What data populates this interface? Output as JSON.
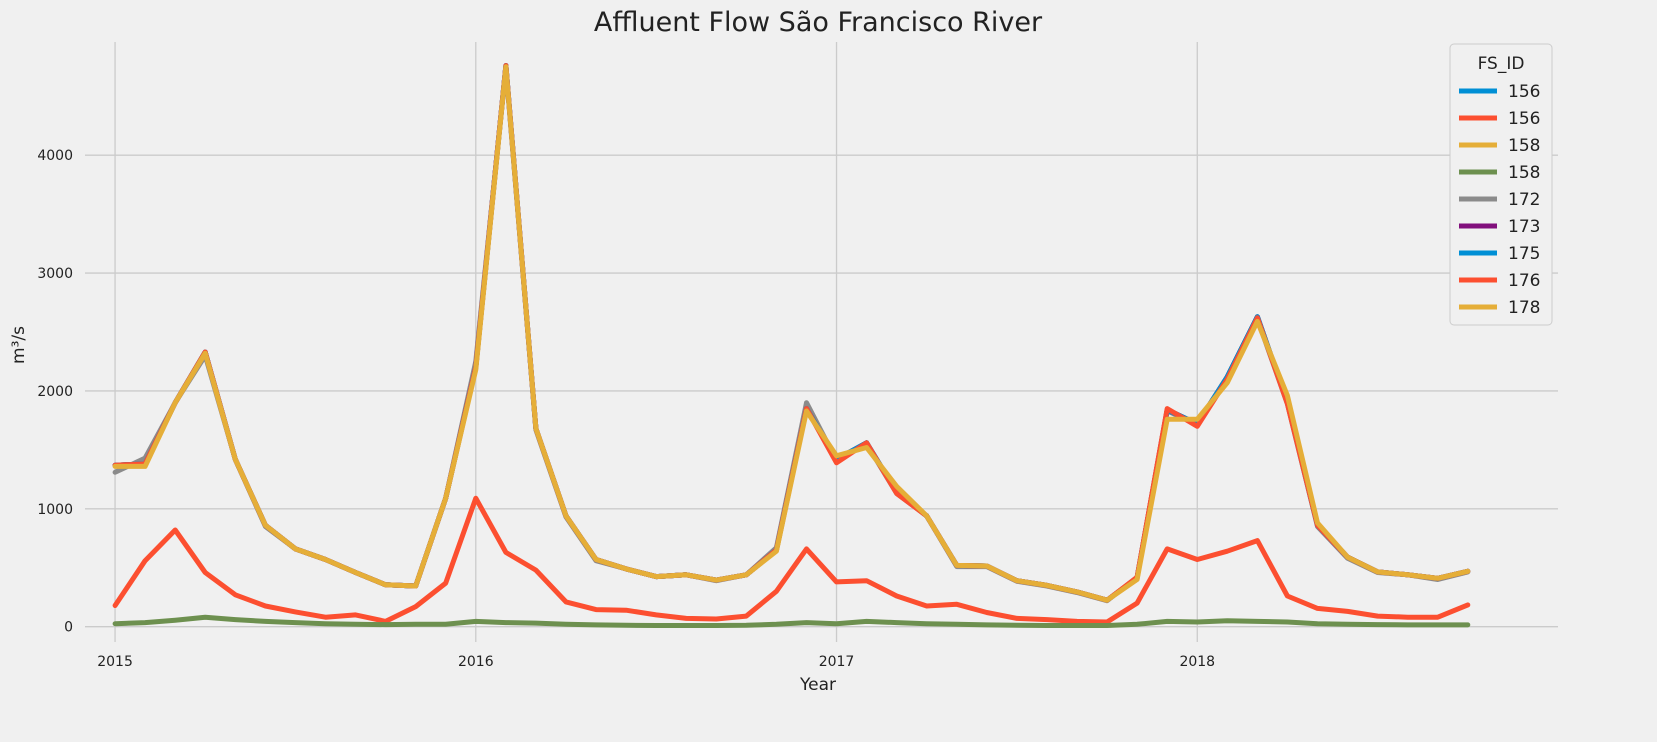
{
  "chart_data": {
    "type": "line",
    "title": "Affluent Flow São Francisco River",
    "xlabel": "Year",
    "ylabel": "m³/s",
    "x_ticks": [
      "2015",
      "2016",
      "2017",
      "2018"
    ],
    "y_ticks": [
      0,
      1000,
      2000,
      3000,
      4000
    ],
    "xlim": [
      "2014-12",
      "2019-01"
    ],
    "ylim": [
      -130,
      4960
    ],
    "grid": true,
    "legend": {
      "title": "FS_ID",
      "placement": "top-right"
    },
    "x": [
      "2015-01",
      "2015-02",
      "2015-03",
      "2015-04",
      "2015-05",
      "2015-06",
      "2015-07",
      "2015-08",
      "2015-09",
      "2015-10",
      "2015-11",
      "2015-12",
      "2016-01",
      "2016-02",
      "2016-03",
      "2016-04",
      "2016-05",
      "2016-06",
      "2016-07",
      "2016-08",
      "2016-09",
      "2016-10",
      "2016-11",
      "2016-12",
      "2017-01",
      "2017-02",
      "2017-03",
      "2017-04",
      "2017-05",
      "2017-06",
      "2017-07",
      "2017-08",
      "2017-09",
      "2017-10",
      "2017-11",
      "2017-12",
      "2018-01",
      "2018-02",
      "2018-03",
      "2018-04",
      "2018-05",
      "2018-06",
      "2018-07",
      "2018-08",
      "2018-09",
      "2018-10"
    ],
    "series": [
      {
        "name": "156",
        "color": "#008fd5",
        "values": [
          1370,
          1380,
          1900,
          2330,
          1420,
          860,
          660,
          570,
          460,
          355,
          345,
          1090,
          2200,
          4760,
          1680,
          940,
          570,
          490,
          425,
          440,
          395,
          440,
          650,
          1850,
          1420,
          1560,
          1140,
          940,
          520,
          515,
          390,
          350,
          295,
          225,
          415,
          1840,
          1720,
          2120,
          2630,
          1900,
          860,
          590,
          465,
          440,
          410,
          470
        ]
      },
      {
        "name": "156",
        "color": "#fc4f30",
        "values": [
          180,
          560,
          820,
          460,
          270,
          175,
          125,
          80,
          100,
          45,
          170,
          370,
          1090,
          630,
          480,
          210,
          145,
          140,
          100,
          70,
          65,
          90,
          300,
          660,
          380,
          390,
          260,
          175,
          190,
          120,
          70,
          60,
          45,
          40,
          200,
          660,
          570,
          640,
          730,
          260,
          155,
          130,
          90,
          80,
          80,
          185
        ]
      },
      {
        "name": "158",
        "color": "#e5ae38",
        "values": [
          1370,
          1380,
          1900,
          2330,
          1420,
          860,
          660,
          570,
          460,
          355,
          345,
          1090,
          2200,
          4760,
          1680,
          940,
          570,
          490,
          425,
          440,
          395,
          440,
          650,
          1850,
          1420,
          1560,
          1140,
          940,
          520,
          515,
          390,
          350,
          295,
          225,
          415,
          1840,
          1720,
          2120,
          2630,
          1900,
          860,
          590,
          465,
          440,
          410,
          470
        ]
      },
      {
        "name": "158",
        "color": "#6d904f",
        "values": [
          25,
          35,
          55,
          80,
          60,
          45,
          35,
          25,
          20,
          18,
          20,
          20,
          45,
          35,
          30,
          20,
          15,
          12,
          10,
          10,
          10,
          12,
          20,
          35,
          25,
          45,
          35,
          25,
          20,
          15,
          12,
          10,
          10,
          10,
          20,
          45,
          40,
          50,
          45,
          40,
          25,
          20,
          18,
          15,
          15,
          15
        ]
      },
      {
        "name": "172",
        "color": "#8b8b8b",
        "values": [
          1310,
          1430,
          1900,
          2300,
          1420,
          850,
          660,
          570,
          460,
          355,
          345,
          1090,
          2250,
          4740,
          1670,
          930,
          560,
          490,
          425,
          440,
          390,
          440,
          670,
          1900,
          1410,
          1550,
          1130,
          940,
          510,
          510,
          385,
          345,
          290,
          220,
          420,
          1830,
          1720,
          2100,
          2610,
          1890,
          850,
          580,
          460,
          440,
          400,
          465
        ]
      },
      {
        "name": "173",
        "color": "#810f7c",
        "values": [
          1370,
          1380,
          1900,
          2330,
          1420,
          860,
          660,
          570,
          460,
          355,
          345,
          1090,
          2200,
          4760,
          1680,
          940,
          570,
          490,
          425,
          440,
          395,
          440,
          650,
          1850,
          1420,
          1560,
          1140,
          940,
          520,
          515,
          390,
          350,
          295,
          225,
          415,
          1840,
          1720,
          2120,
          2630,
          1900,
          860,
          590,
          465,
          440,
          410,
          470
        ]
      },
      {
        "name": "175",
        "color": "#008fd5",
        "values": [
          1370,
          1380,
          1900,
          2330,
          1420,
          860,
          660,
          570,
          460,
          355,
          345,
          1090,
          2200,
          4760,
          1680,
          940,
          570,
          490,
          425,
          440,
          395,
          440,
          650,
          1850,
          1420,
          1560,
          1140,
          940,
          520,
          515,
          390,
          350,
          295,
          225,
          415,
          1840,
          1720,
          2120,
          2630,
          1900,
          860,
          590,
          465,
          440,
          410,
          470
        ]
      },
      {
        "name": "176",
        "color": "#fc4f30",
        "values": [
          1370,
          1380,
          1900,
          2330,
          1420,
          860,
          660,
          570,
          460,
          355,
          345,
          1090,
          2200,
          4760,
          1680,
          940,
          570,
          490,
          425,
          440,
          395,
          440,
          650,
          1850,
          1390,
          1560,
          1130,
          940,
          520,
          515,
          390,
          350,
          295,
          225,
          420,
          1850,
          1700,
          2100,
          2620,
          1890,
          860,
          590,
          465,
          440,
          410,
          470
        ]
      },
      {
        "name": "178",
        "color": "#e5ae38",
        "values": [
          1360,
          1360,
          1900,
          2320,
          1420,
          860,
          660,
          570,
          460,
          355,
          345,
          1090,
          2180,
          4750,
          1680,
          940,
          570,
          490,
          425,
          440,
          395,
          440,
          640,
          1830,
          1450,
          1520,
          1190,
          940,
          520,
          515,
          390,
          350,
          295,
          225,
          400,
          1760,
          1760,
          2070,
          2590,
          1960,
          880,
          590,
          465,
          440,
          410,
          470
        ]
      }
    ]
  }
}
